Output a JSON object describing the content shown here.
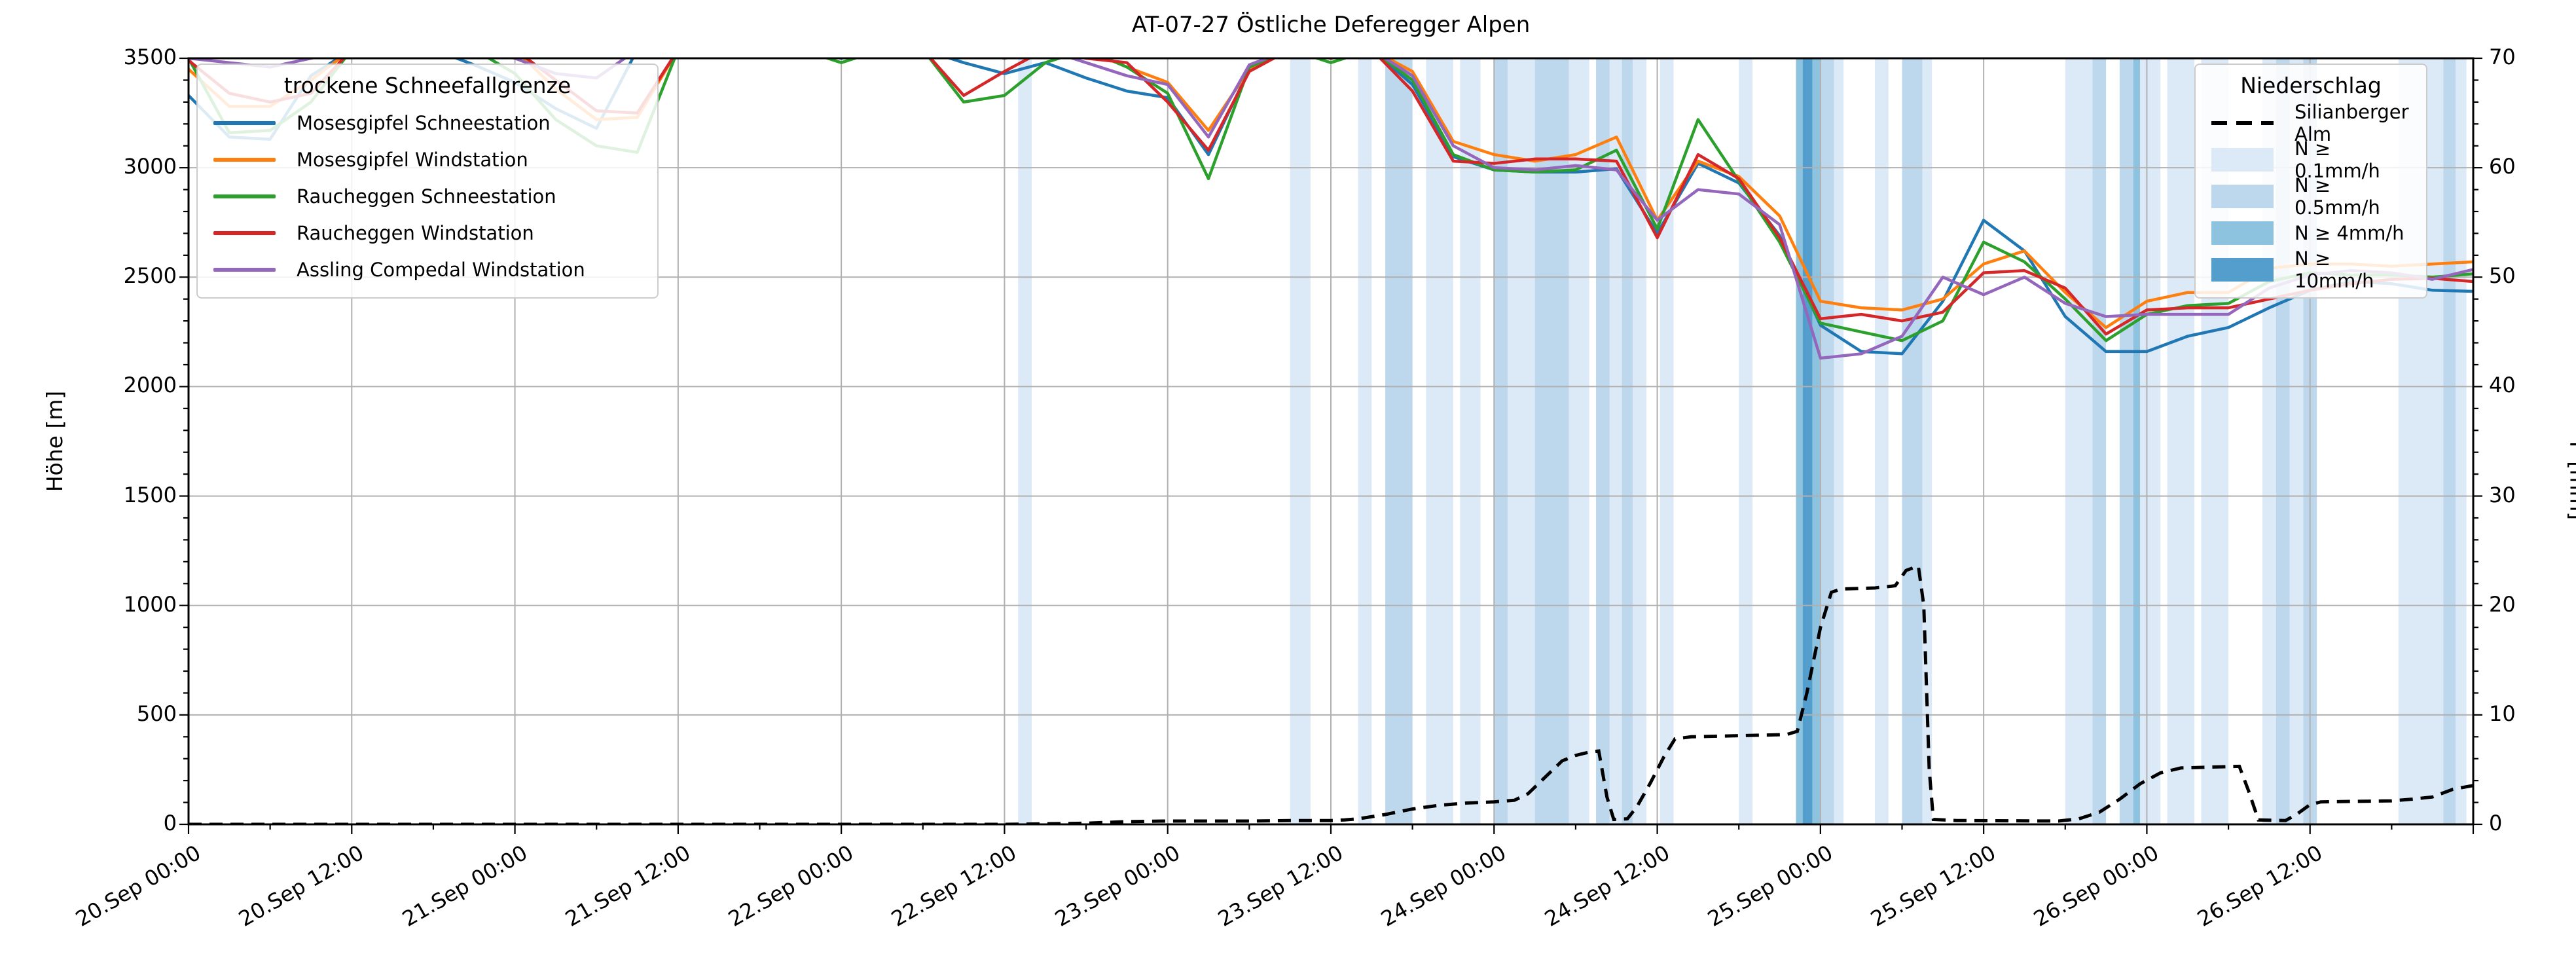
{
  "title": "AT-07-27 Östliche Deferegger Alpen",
  "axes": {
    "y_left": {
      "label": "Höhe [m]",
      "min": 0,
      "max": 3500,
      "major_step": 500,
      "minor_step": 100,
      "tick_labels": [
        "0",
        "500",
        "1000",
        "1500",
        "2000",
        "2500",
        "3000",
        "3500"
      ]
    },
    "y_right": {
      "label": "P [mm]",
      "min": 0,
      "max": 70,
      "major_step": 10,
      "minor_step": 2,
      "tick_labels": [
        "0",
        "10",
        "20",
        "30",
        "40",
        "50",
        "60",
        "70"
      ]
    },
    "x": {
      "hours_total": 168,
      "major_step_h": 12,
      "minor_step_h": 6,
      "tick_labels": [
        "20.Sep 00:00",
        "20.Sep 12:00",
        "21.Sep 00:00",
        "21.Sep 12:00",
        "22.Sep 00:00",
        "22.Sep 12:00",
        "23.Sep 00:00",
        "23.Sep 12:00",
        "24.Sep 00:00",
        "24.Sep 12:00",
        "25.Sep 00:00",
        "25.Sep 12:00",
        "26.Sep 00:00",
        "26.Sep 12:00"
      ]
    }
  },
  "legend_snowline": {
    "title": "trockene Schneefallgrenze",
    "items": [
      {
        "label": "Mosesgipfel Schneestation",
        "color": "#1f77b4"
      },
      {
        "label": "Mosesgipfel Windstation",
        "color": "#ff7f0e"
      },
      {
        "label": "Raucheggen Schneestation",
        "color": "#2ca02c"
      },
      {
        "label": "Raucheggen Windstation",
        "color": "#d62728"
      },
      {
        "label": "Assling Compedal Windstation",
        "color": "#9467bd"
      }
    ]
  },
  "legend_precip": {
    "title": "Niederschlag",
    "line_item": "Silianberger Alm",
    "levels": [
      {
        "label": "N ≥ 0.1mm/h",
        "color": "#dce9f6"
      },
      {
        "label": "N ≥ 0.5mm/h",
        "color": "#bdd7ec"
      },
      {
        "label": "N ≥ 4mm/h",
        "color": "#8ec3e0"
      },
      {
        "label": "N ≥ 10mm/h",
        "color": "#539ecd"
      }
    ]
  },
  "chart_data": {
    "type": "line",
    "title": "AT-07-27 Östliche Deferegger Alpen",
    "xlabel": "",
    "ylabel_left": "Höhe [m]",
    "ylabel_right": "P [mm]",
    "x_unit": "hours since 20.Sep 00:00",
    "x_range_h": [
      0,
      168
    ],
    "ylim_left": [
      0,
      3500
    ],
    "ylim_right": [
      0,
      70
    ],
    "grid": true,
    "sample_step_h": 3,
    "series": [
      {
        "name": "Mosesgipfel Schneestation",
        "color": "#1f77b4",
        "axis": "left",
        "values": [
          3330,
          3140,
          3130,
          3420,
          3540,
          3540,
          3540,
          3470,
          3390,
          3270,
          3180,
          3540,
          3540,
          3540,
          3540,
          3540,
          3500,
          3540,
          3540,
          3480,
          3430,
          3480,
          3410,
          3350,
          3320,
          3060,
          3450,
          3540,
          3500,
          3540,
          3380,
          3050,
          2990,
          2980,
          2980,
          2995,
          2700,
          3020,
          2930,
          2690,
          2280,
          2160,
          2150,
          2390,
          2760,
          2620,
          2320,
          2160,
          2160,
          2230,
          2270,
          2360,
          2440,
          2480,
          2470,
          2440,
          2435
        ]
      },
      {
        "name": "Mosesgipfel Windstation",
        "color": "#ff7f0e",
        "axis": "left",
        "values": [
          3450,
          3280,
          3280,
          3400,
          3540,
          3540,
          3540,
          3540,
          3540,
          3360,
          3220,
          3230,
          3540,
          3540,
          3540,
          3540,
          3540,
          3540,
          3540,
          3540,
          3500,
          3540,
          3540,
          3460,
          3390,
          3170,
          3450,
          3540,
          3540,
          3540,
          3440,
          3120,
          3060,
          3030,
          3060,
          3140,
          2760,
          3030,
          2960,
          2780,
          2390,
          2360,
          2350,
          2400,
          2560,
          2620,
          2430,
          2270,
          2390,
          2430,
          2430,
          2540,
          2560,
          2560,
          2550,
          2560,
          2570
        ]
      },
      {
        "name": "Raucheggen Schneestation",
        "color": "#2ca02c",
        "axis": "left",
        "values": [
          3500,
          3160,
          3170,
          3300,
          3540,
          3540,
          3540,
          3540,
          3430,
          3220,
          3100,
          3070,
          3540,
          3540,
          3540,
          3540,
          3480,
          3540,
          3540,
          3300,
          3330,
          3480,
          3540,
          3460,
          3340,
          2950,
          3460,
          3540,
          3480,
          3540,
          3400,
          3060,
          2990,
          2980,
          2990,
          3080,
          2720,
          3220,
          2940,
          2660,
          2290,
          2250,
          2210,
          2300,
          2660,
          2570,
          2400,
          2210,
          2330,
          2370,
          2380,
          2480,
          2520,
          2510,
          2510,
          2500,
          2515
        ]
      },
      {
        "name": "Raucheggen Windstation",
        "color": "#d62728",
        "axis": "left",
        "values": [
          3490,
          3340,
          3300,
          3340,
          3540,
          3540,
          3540,
          3540,
          3540,
          3400,
          3260,
          3250,
          3540,
          3540,
          3540,
          3540,
          3540,
          3540,
          3540,
          3330,
          3440,
          3540,
          3500,
          3480,
          3300,
          3080,
          3440,
          3540,
          3500,
          3540,
          3350,
          3030,
          3020,
          3040,
          3040,
          3030,
          2680,
          3060,
          2950,
          2680,
          2310,
          2330,
          2300,
          2340,
          2520,
          2530,
          2450,
          2240,
          2350,
          2360,
          2360,
          2400,
          2440,
          2470,
          2490,
          2495,
          2480
        ]
      },
      {
        "name": "Assling Compedal Windstation",
        "color": "#9467bd",
        "axis": "left",
        "values": [
          3500,
          3480,
          3460,
          3500,
          3540,
          3540,
          3540,
          3540,
          3500,
          3430,
          3410,
          3540,
          3540,
          3540,
          3540,
          3540,
          3540,
          3540,
          3540,
          3540,
          3500,
          3540,
          3480,
          3420,
          3380,
          3140,
          3470,
          3540,
          3540,
          3540,
          3420,
          3100,
          3000,
          2990,
          3010,
          2990,
          2760,
          2900,
          2880,
          2740,
          2130,
          2150,
          2230,
          2500,
          2420,
          2500,
          2380,
          2320,
          2330,
          2330,
          2330,
          2450,
          2510,
          2530,
          2520,
          2490,
          2535
        ]
      }
    ],
    "precip_line": {
      "name": "Silianberger Alm",
      "color": "#000000",
      "axis": "right",
      "style": "dashed",
      "points": [
        [
          0,
          0
        ],
        [
          60,
          0
        ],
        [
          63,
          0.05
        ],
        [
          66,
          0.1
        ],
        [
          69,
          0.25
        ],
        [
          72,
          0.3
        ],
        [
          78,
          0.3
        ],
        [
          81,
          0.35
        ],
        [
          84,
          0.35
        ],
        [
          85,
          0.4
        ],
        [
          86,
          0.5
        ],
        [
          88,
          0.9
        ],
        [
          90,
          1.4
        ],
        [
          92,
          1.75
        ],
        [
          94,
          1.95
        ],
        [
          96,
          2.05
        ],
        [
          97.5,
          2.2
        ],
        [
          98.5,
          2.8
        ],
        [
          100,
          4.6
        ],
        [
          101,
          5.8
        ],
        [
          102,
          6.3
        ],
        [
          103,
          6.6
        ],
        [
          103.7,
          6.7
        ],
        [
          104.3,
          2.5
        ],
        [
          104.8,
          0.45
        ],
        [
          105.8,
          0.5
        ],
        [
          106.5,
          1.6
        ],
        [
          107.5,
          3.8
        ],
        [
          108.5,
          6.2
        ],
        [
          109.3,
          7.8
        ],
        [
          110.5,
          8.0
        ],
        [
          114,
          8.1
        ],
        [
          117.5,
          8.2
        ],
        [
          118.3,
          8.5
        ],
        [
          119,
          12
        ],
        [
          120,
          18
        ],
        [
          120.8,
          21.2
        ],
        [
          121.5,
          21.5
        ],
        [
          124,
          21.6
        ],
        [
          125.5,
          21.8
        ],
        [
          126.3,
          23.2
        ],
        [
          127.2,
          23.6
        ],
        [
          127.6,
          20
        ],
        [
          128,
          5
        ],
        [
          128.3,
          0.45
        ],
        [
          130,
          0.35
        ],
        [
          137.5,
          0.3
        ],
        [
          139,
          0.5
        ],
        [
          140.5,
          1.1
        ],
        [
          142,
          2.3
        ],
        [
          143.5,
          3.7
        ],
        [
          145,
          4.7
        ],
        [
          146.5,
          5.15
        ],
        [
          150.8,
          5.3
        ],
        [
          151.5,
          3
        ],
        [
          152.2,
          0.4
        ],
        [
          154.2,
          0.35
        ],
        [
          155,
          0.9
        ],
        [
          156,
          1.8
        ],
        [
          156.8,
          2.05
        ],
        [
          162,
          2.15
        ],
        [
          163.5,
          2.3
        ],
        [
          165,
          2.5
        ],
        [
          166.5,
          3.2
        ],
        [
          168,
          3.55
        ]
      ]
    },
    "precip_bands": [
      [
        61,
        62,
        "0.1"
      ],
      [
        81,
        82.5,
        "0.1"
      ],
      [
        86,
        87,
        "0.1"
      ],
      [
        88,
        90,
        "0.5"
      ],
      [
        91,
        93,
        "0.1"
      ],
      [
        93.5,
        95,
        "0.1"
      ],
      [
        96,
        97,
        "0.5"
      ],
      [
        97,
        99,
        "0.1"
      ],
      [
        99,
        101.5,
        "0.5"
      ],
      [
        101.5,
        103,
        "0.1"
      ],
      [
        103.5,
        104.5,
        "0.5"
      ],
      [
        104.5,
        105.4,
        "0.1"
      ],
      [
        105.4,
        106.2,
        "0.5"
      ],
      [
        106.2,
        107.2,
        "0.1"
      ],
      [
        108.2,
        109.2,
        "0.1"
      ],
      [
        114,
        115,
        "0.1"
      ],
      [
        118.2,
        120,
        "4"
      ],
      [
        118.7,
        119.4,
        "10"
      ],
      [
        120,
        121,
        "0.5"
      ],
      [
        121,
        121.7,
        "0.1"
      ],
      [
        124,
        125,
        "0.1"
      ],
      [
        126,
        127.5,
        "0.5"
      ],
      [
        127.5,
        128.2,
        "0.1"
      ],
      [
        138,
        140,
        "0.1"
      ],
      [
        140,
        141,
        "0.5"
      ],
      [
        142,
        143,
        "0.5"
      ],
      [
        143,
        143.5,
        "4"
      ],
      [
        143.5,
        145,
        "0.1"
      ],
      [
        145.5,
        147.5,
        "0.1"
      ],
      [
        148,
        150,
        "0.1"
      ],
      [
        152.5,
        153.5,
        "0.1"
      ],
      [
        153.5,
        154.5,
        "0.5"
      ],
      [
        154.5,
        155.5,
        "0.1"
      ],
      [
        155.5,
        156.5,
        "0.5"
      ],
      [
        162.5,
        165.8,
        "0.1"
      ],
      [
        165.8,
        166.7,
        "0.5"
      ],
      [
        166.7,
        167.5,
        "0.1"
      ]
    ],
    "band_colors": {
      "0.1": "#dce9f6",
      "0.5": "#bdd7ec",
      "4": "#8ec3e0",
      "10": "#539ecd"
    },
    "layout": {
      "plot_left": 288,
      "plot_top": 89,
      "plot_right": 3778,
      "plot_bottom": 1259
    }
  }
}
